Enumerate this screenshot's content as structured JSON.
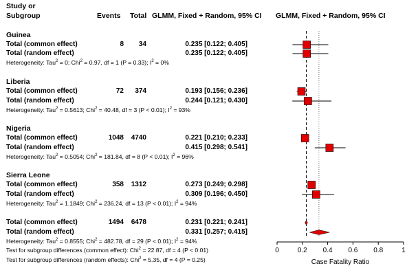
{
  "header": {
    "study_line1": "Study or",
    "study_line2": "Subgroup",
    "events": "Events",
    "total": "Total",
    "ci_header": "GLMM, Fixed + Random, 95% CI",
    "plot_header": "GLMM, Fixed + Random, 95% CI"
  },
  "groups": [
    {
      "name": "Guinea",
      "common_label": "Total (common effect)",
      "random_label": "Total (random effect)",
      "events": "8",
      "total": "34",
      "common_ci": "0.235 [0.122; 0.405]",
      "random_ci": "0.235 [0.122; 0.405]",
      "het_pre": "Heterogeneity: Tau",
      "het_a": "2",
      "het_mid": " = 0; Chi",
      "het_b": "2",
      "het_mid2": " = 0.97, df = 1 (P = 0.33); I",
      "het_c": "2",
      "het_end": " = 0%"
    },
    {
      "name": "Liberia",
      "common_label": "Total (common effect)",
      "random_label": "Total (random effect)",
      "events": "72",
      "total": "374",
      "common_ci": "0.193 [0.156; 0.236]",
      "random_ci": "0.244 [0.121; 0.430]",
      "het_pre": "Heterogeneity: Tau",
      "het_a": "2",
      "het_mid": " = 0.5613; Chi",
      "het_b": "2",
      "het_mid2": " = 40.48, df = 3 (P < 0.01); I",
      "het_c": "2",
      "het_end": " = 93%"
    },
    {
      "name": "Nigeria",
      "common_label": "Total (common effect)",
      "random_label": "Total (random effect)",
      "events": "1048",
      "total": "4740",
      "common_ci": "0.221 [0.210; 0.233]",
      "random_ci": "0.415 [0.298; 0.541]",
      "het_pre": "Heterogeneity: Tau",
      "het_a": "2",
      "het_mid": " = 0.5054; Chi",
      "het_b": "2",
      "het_mid2": " = 181.84, df = 8 (P < 0.01); I",
      "het_c": "2",
      "het_end": " = 96%"
    },
    {
      "name": "Sierra Leone",
      "common_label": "Total (common effect)",
      "random_label": "Total (random effect)",
      "events": "358",
      "total": "1312",
      "common_ci": "0.273 [0.249; 0.298]",
      "random_ci": "0.309 [0.196; 0.450]",
      "het_pre": "Heterogeneity: Tau",
      "het_a": "2",
      "het_mid": " = 1.1849; Chi",
      "het_b": "2",
      "het_mid2": " = 236.24, df = 13 (P < 0.01); I",
      "het_c": "2",
      "het_end": " = 94%"
    }
  ],
  "overall": {
    "common_label": "Total (common effect)",
    "random_label": "Total (random effect)",
    "events": "1494",
    "total": "6478",
    "common_ci": "0.231 [0.221; 0.241]",
    "random_ci": "0.331 [0.257; 0.415]",
    "het_pre": "Heterogeneity: Tau",
    "het_a": "2",
    "het_mid": " = 0.8555; Chi",
    "het_b": "2",
    "het_mid2": " = 482.78, df = 29 (P < 0.01); I",
    "het_c": "2",
    "het_end": " = 94%",
    "sub_common_pre": "Test for subgroup differences (common effect): Chi",
    "sub_common_sup": "2",
    "sub_common_end": " = 22.87, df = 4 (P < 0.01)",
    "sub_random_pre": "Test for subgroup differences (random effects): Chi",
    "sub_random_sup": "2",
    "sub_random_end": " = 5.35, df = 4 (P = 0.25)"
  },
  "chart_data": {
    "type": "forest",
    "xlabel": "Case Fatality Ratio",
    "xlim": [
      0,
      1
    ],
    "ticks": [
      0,
      0.2,
      0.4,
      0.6,
      0.8,
      1
    ],
    "tick_labels": [
      "0",
      "0.2",
      "0.4",
      "0.6",
      "0.8",
      "1"
    ],
    "reference_line_common": 0.231,
    "reference_line_random": 0.331,
    "square_color": "#e00000",
    "diamond_color": "#e00000",
    "series": [
      {
        "name": "Guinea common",
        "estimate": 0.235,
        "lower": 0.122,
        "upper": 0.405
      },
      {
        "name": "Guinea random",
        "estimate": 0.235,
        "lower": 0.122,
        "upper": 0.405
      },
      {
        "name": "Liberia common",
        "estimate": 0.193,
        "lower": 0.156,
        "upper": 0.236
      },
      {
        "name": "Liberia random",
        "estimate": 0.244,
        "lower": 0.121,
        "upper": 0.43
      },
      {
        "name": "Nigeria common",
        "estimate": 0.221,
        "lower": 0.21,
        "upper": 0.233
      },
      {
        "name": "Nigeria random",
        "estimate": 0.415,
        "lower": 0.298,
        "upper": 0.541
      },
      {
        "name": "Sierra Leone common",
        "estimate": 0.273,
        "lower": 0.249,
        "upper": 0.298
      },
      {
        "name": "Sierra Leone random",
        "estimate": 0.309,
        "lower": 0.196,
        "upper": 0.45
      }
    ],
    "overall": [
      {
        "name": "Overall common",
        "estimate": 0.231,
        "lower": 0.221,
        "upper": 0.241
      },
      {
        "name": "Overall random",
        "estimate": 0.331,
        "lower": 0.257,
        "upper": 0.415
      }
    ]
  }
}
